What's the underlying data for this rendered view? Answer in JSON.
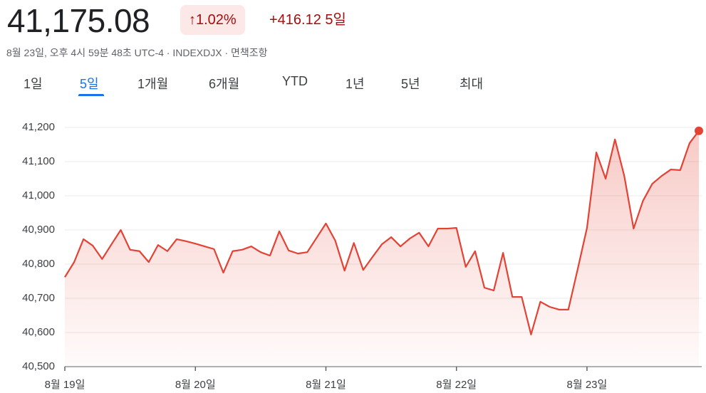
{
  "header": {
    "price": "41,175.08",
    "change_percent": "1.02%",
    "change": "+416.12",
    "period": "5일",
    "subtitle": "8월 23일, 오후 4시 59분 48초 UTC-4 · INDEXDJX · 면책조항",
    "tabs": [
      "1일",
      "5일",
      "1개월",
      "6개월",
      "YTD",
      "1년",
      "5년",
      "최대"
    ]
  },
  "chart_data": {
    "type": "line",
    "categories": [
      "8월 19일",
      null,
      null,
      null,
      null,
      null,
      null,
      null,
      null,
      null,
      null,
      null,
      null,
      null,
      "8월 20일",
      null,
      null,
      null,
      null,
      null,
      null,
      null,
      null,
      null,
      null,
      null,
      null,
      null,
      "8월 21일",
      null,
      null,
      null,
      null,
      null,
      null,
      null,
      null,
      null,
      null,
      null,
      null,
      null,
      "8월 22일",
      null,
      null,
      null,
      null,
      null,
      null,
      null,
      null,
      null,
      null,
      null,
      null,
      null,
      "8월 23일",
      null,
      null,
      null,
      null,
      null,
      null,
      null,
      null,
      null,
      null,
      null,
      null
    ],
    "series": [
      {
        "name": "INDEXDJX",
        "color": "#e34234",
        "values": [
          40762,
          40806,
          40873,
          40854,
          40815,
          40858,
          40900,
          40842,
          40838,
          40806,
          40856,
          40838,
          40873,
          40867,
          40860,
          40852,
          40844,
          40775,
          40838,
          40842,
          40852,
          40835,
          40825,
          40896,
          40840,
          40831,
          40835,
          40877,
          40919,
          40869,
          40781,
          40862,
          40783,
          40821,
          40858,
          40879,
          40852,
          40875,
          40892,
          40852,
          40904,
          40904,
          40906,
          40792,
          40838,
          40731,
          40723,
          40833,
          40704,
          40704,
          40594,
          40690,
          40675,
          40667,
          40667,
          40785,
          40906,
          41127,
          41050,
          41165,
          41058,
          40904,
          40985,
          41035,
          41058,
          41077,
          41075,
          41154,
          41190
        ]
      }
    ],
    "ylim": [
      40500,
      41200
    ],
    "yticks": [
      {
        "value": 40500,
        "label": "40,500"
      },
      {
        "value": 40600,
        "label": "40,600"
      },
      {
        "value": 40700,
        "label": "40,700"
      },
      {
        "value": 40800,
        "label": "40,800"
      },
      {
        "value": 40900,
        "label": "40,900"
      },
      {
        "value": 41000,
        "label": "41,000"
      },
      {
        "value": 41100,
        "label": "41,100"
      },
      {
        "value": 41200,
        "label": "41,200"
      }
    ],
    "grid": true
  }
}
